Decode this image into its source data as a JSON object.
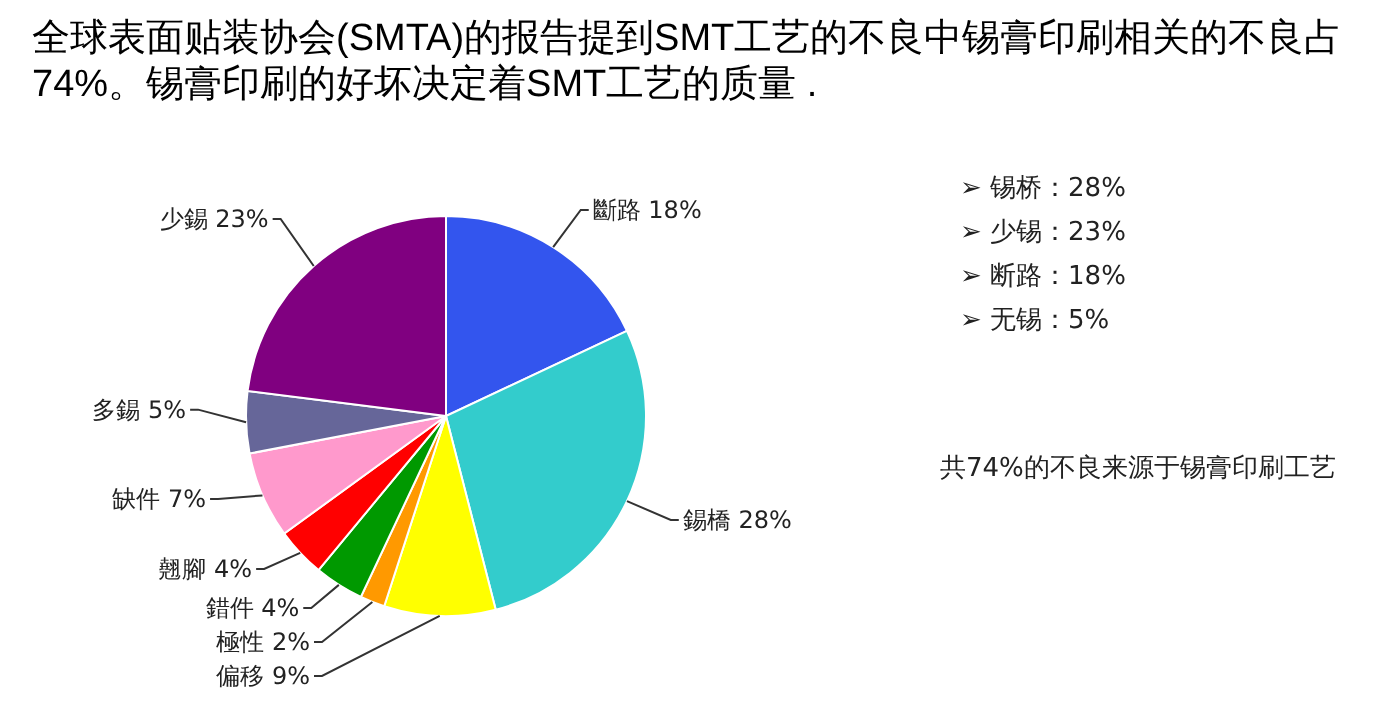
{
  "chart_data": {
    "type": "pie",
    "title": "全球表面贴装协会(SMTA)的报告提到SMT工艺的不良中锡膏印刷相关的不良占74%。锡膏印刷的好坏决定着SMT工艺的质量 .",
    "categories": [
      "斷路",
      "錫橋",
      "偏移",
      "極性",
      "錯件",
      "翹腳",
      "缺件",
      "多錫",
      "少錫"
    ],
    "values": [
      18,
      28,
      9,
      2,
      4,
      4,
      7,
      5,
      23
    ],
    "value_labels": [
      "18%",
      "28%",
      "9%",
      "2%",
      "4%",
      "4%",
      "7%",
      "5%",
      "23%"
    ],
    "colors": [
      "#3355ee",
      "#33cccc",
      "#ffff00",
      "#ff9900",
      "#009900",
      "#ff0000",
      "#ff99cc",
      "#666699",
      "#800080"
    ],
    "annotations": [
      "➢  锡桥：28%",
      "➢  少锡：23%",
      "➢  断路：18%",
      "➢  无锡：5%",
      "共74%的不良来源于锡膏印刷工艺"
    ]
  }
}
